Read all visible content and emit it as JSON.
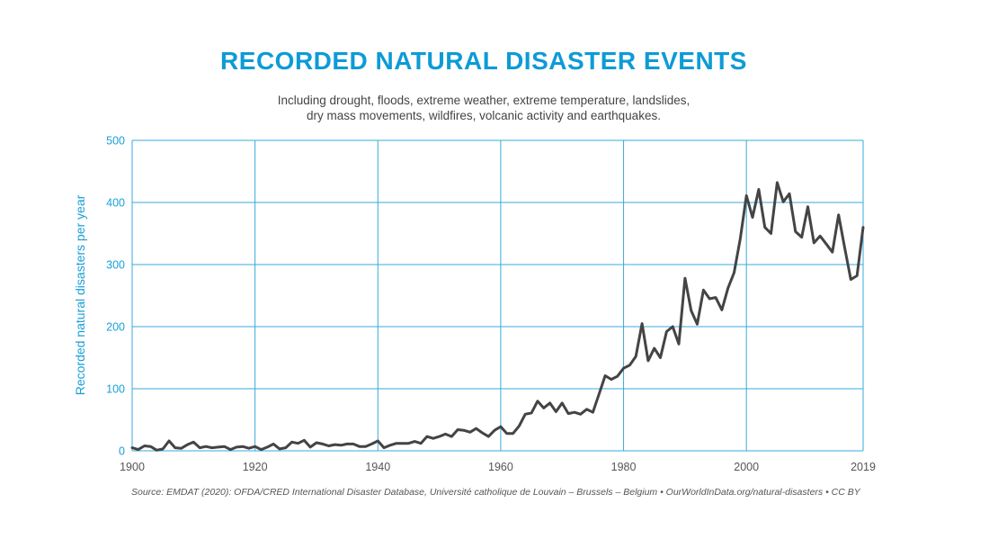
{
  "chart_data": {
    "type": "line",
    "title": "RECORDED NATURAL DISASTER EVENTS",
    "subtitle_lines": [
      "Including drought, floods, extreme weather, extreme temperature, landslides,",
      "dry mass movements, wildfires, volcanic activity and earthquakes."
    ],
    "xlabel": "",
    "ylabel": "Recorded natural disasters per year",
    "xlim": [
      1900,
      2019
    ],
    "ylim": [
      0,
      500
    ],
    "x_ticks": [
      "1900",
      "1920",
      "1940",
      "1960",
      "1980",
      "2000",
      "2019"
    ],
    "y_ticks": [
      "0",
      "100",
      "200",
      "300",
      "400",
      "500"
    ],
    "grid": true,
    "source": "Source: EMDAT (2020): OFDA/CRED International Disaster Database, Université catholique de Louvain – Brussels – Belgium • OurWorldInData.org/natural-disasters • CC BY",
    "series": [
      {
        "name": "Recorded natural disasters per year",
        "x": [
          1900,
          1901,
          1902,
          1903,
          1904,
          1905,
          1906,
          1907,
          1908,
          1909,
          1910,
          1911,
          1912,
          1913,
          1914,
          1915,
          1916,
          1917,
          1918,
          1919,
          1920,
          1921,
          1922,
          1923,
          1924,
          1925,
          1926,
          1927,
          1928,
          1929,
          1930,
          1931,
          1932,
          1933,
          1934,
          1935,
          1936,
          1937,
          1938,
          1939,
          1940,
          1941,
          1942,
          1943,
          1944,
          1945,
          1946,
          1947,
          1948,
          1949,
          1950,
          1951,
          1952,
          1953,
          1954,
          1955,
          1956,
          1957,
          1958,
          1959,
          1960,
          1961,
          1962,
          1963,
          1964,
          1965,
          1966,
          1967,
          1968,
          1969,
          1970,
          1971,
          1972,
          1973,
          1974,
          1975,
          1976,
          1977,
          1978,
          1979,
          1980,
          1981,
          1982,
          1983,
          1984,
          1985,
          1986,
          1987,
          1988,
          1989,
          1990,
          1991,
          1992,
          1993,
          1994,
          1995,
          1996,
          1997,
          1998,
          1999,
          2000,
          2001,
          2002,
          2003,
          2004,
          2005,
          2006,
          2007,
          2008,
          2009,
          2010,
          2011,
          2012,
          2013,
          2014,
          2015,
          2016,
          2017,
          2018,
          2019
        ],
        "values": [
          5,
          2,
          8,
          7,
          1,
          3,
          16,
          5,
          4,
          10,
          14,
          5,
          7,
          5,
          6,
          7,
          2,
          6,
          7,
          4,
          7,
          2,
          6,
          11,
          3,
          5,
          14,
          12,
          17,
          6,
          13,
          11,
          8,
          10,
          9,
          11,
          11,
          7,
          7,
          11,
          16,
          5,
          9,
          12,
          12,
          12,
          15,
          12,
          23,
          20,
          23,
          27,
          23,
          34,
          33,
          30,
          36,
          29,
          23,
          33,
          39,
          28,
          28,
          40,
          59,
          61,
          80,
          69,
          77,
          63,
          77,
          60,
          62,
          59,
          67,
          62,
          91,
          121,
          115,
          120,
          133,
          138,
          152,
          205,
          145,
          165,
          150,
          192,
          200,
          172,
          278,
          226,
          204,
          259,
          245,
          247,
          227,
          262,
          287,
          342,
          411,
          376,
          421,
          360,
          350,
          432,
          401,
          414,
          353,
          344,
          393,
          335,
          346,
          333,
          320,
          380,
          327,
          276,
          282,
          360
        ]
      }
    ]
  },
  "colors": {
    "accent": "#0d9bd6",
    "grid": "#3aa9dc",
    "line": "#444444",
    "axis_text": "#1a9fd8",
    "x_text": "#555555"
  }
}
